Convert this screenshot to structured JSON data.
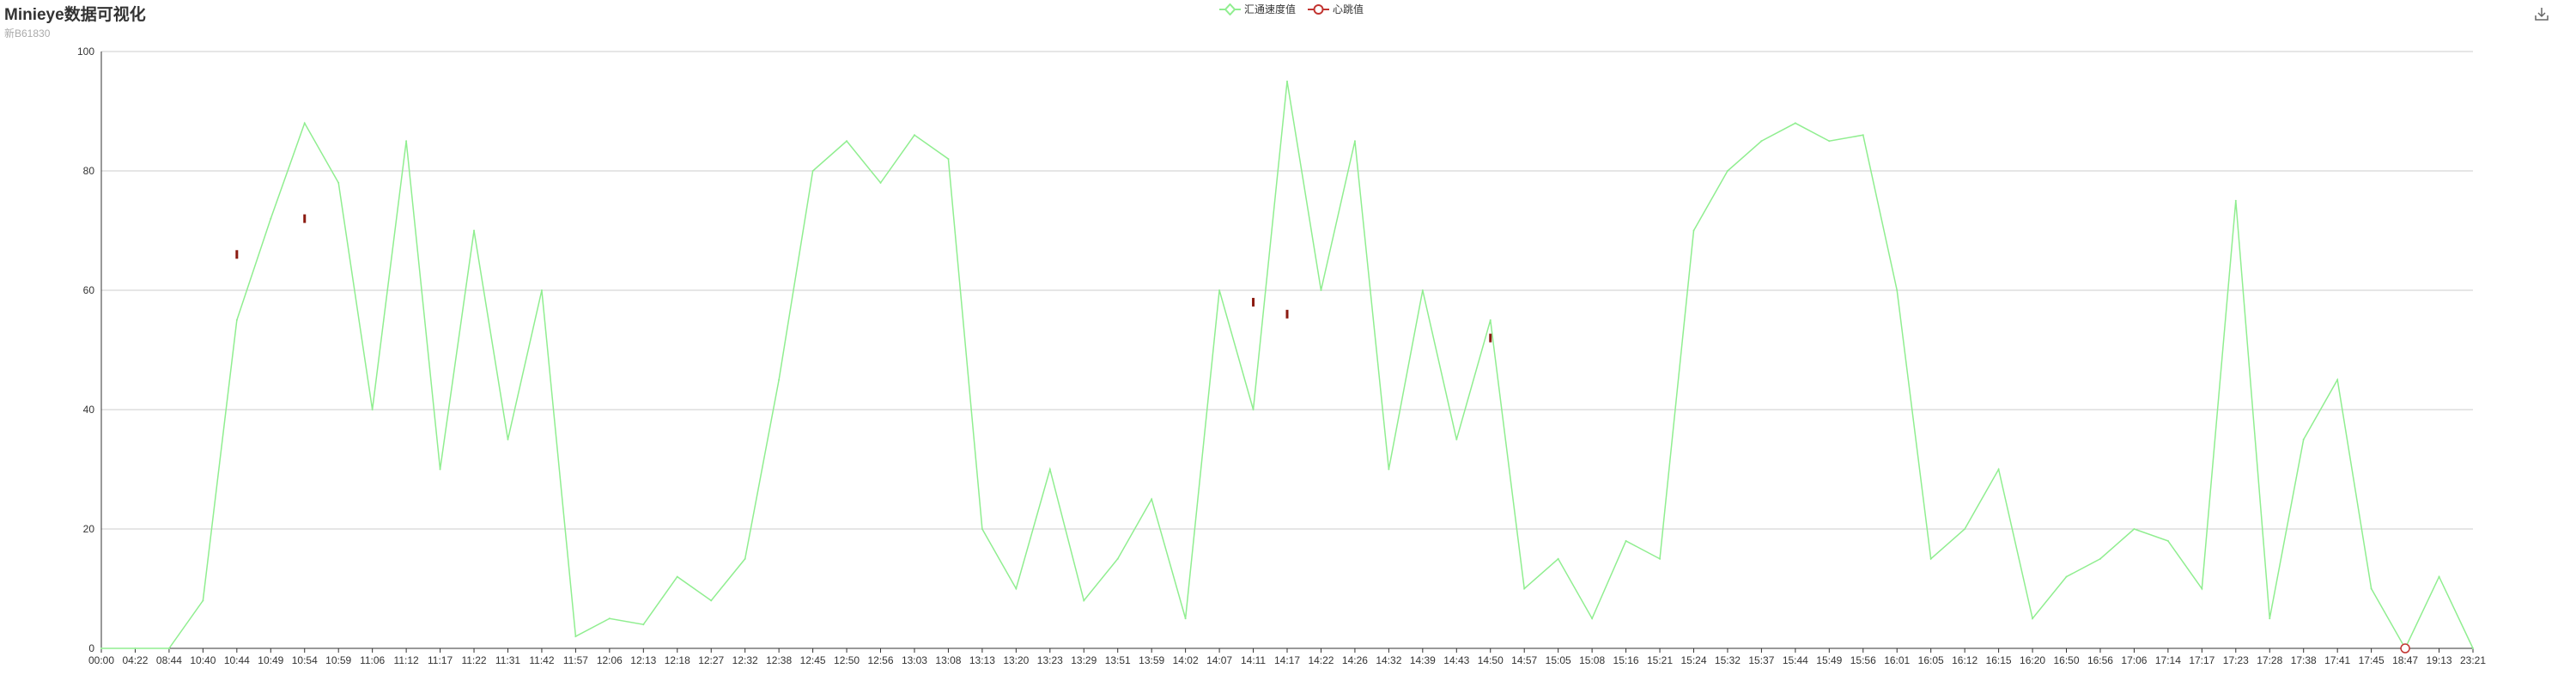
{
  "header": {
    "title": "Minieye数据可视化",
    "subtitle": "新B61830"
  },
  "legend": [
    {
      "name": "汇通速度值",
      "color": "#90ee90",
      "symbol": "emptyDiamond"
    },
    {
      "name": "心跳值",
      "color": "#c23531",
      "symbol": "emptyCircle"
    }
  ],
  "toolbox": {
    "icon": "download-icon"
  },
  "chart_data": {
    "type": "line",
    "title": "Minieye数据可视化",
    "subtitle": "新B61830",
    "ylim": [
      0,
      100
    ],
    "yticks": [
      0,
      20,
      40,
      60,
      80,
      100
    ],
    "grid": true,
    "legend_position": "top-center",
    "categories": [
      "00:00",
      "04:22",
      "08:44",
      "10:40",
      "10:44",
      "10:49",
      "10:54",
      "10:59",
      "11:06",
      "11:12",
      "11:17",
      "11:22",
      "11:31",
      "11:42",
      "11:57",
      "12:06",
      "12:13",
      "12:18",
      "12:27",
      "12:32",
      "12:38",
      "12:45",
      "12:50",
      "12:56",
      "13:03",
      "13:08",
      "13:13",
      "13:20",
      "13:23",
      "13:29",
      "13:51",
      "13:59",
      "14:02",
      "14:07",
      "14:11",
      "14:17",
      "14:22",
      "14:26",
      "14:32",
      "14:39",
      "14:43",
      "14:50",
      "14:57",
      "15:05",
      "15:08",
      "15:16",
      "15:21",
      "15:24",
      "15:32",
      "15:37",
      "15:44",
      "15:49",
      "15:56",
      "16:01",
      "16:05",
      "16:12",
      "16:15",
      "16:20",
      "16:50",
      "16:56",
      "17:06",
      "17:14",
      "17:17",
      "17:23",
      "17:28",
      "17:38",
      "17:41",
      "17:45",
      "18:47",
      "19:13",
      "23:21"
    ],
    "series": [
      {
        "name": "汇通速度值",
        "color": "#90ee90",
        "values": [
          0,
          0,
          0,
          8,
          55,
          72,
          88,
          78,
          40,
          85,
          30,
          70,
          35,
          60,
          2,
          5,
          4,
          12,
          8,
          15,
          45,
          80,
          85,
          78,
          86,
          82,
          20,
          10,
          30,
          8,
          15,
          25,
          5,
          60,
          40,
          95,
          60,
          85,
          30,
          60,
          35,
          55,
          10,
          15,
          5,
          18,
          15,
          70,
          80,
          85,
          88,
          85,
          86,
          60,
          15,
          20,
          30,
          5,
          12,
          15,
          20,
          18,
          10,
          75,
          5,
          35,
          45,
          10,
          0,
          12,
          0
        ]
      },
      {
        "name": "心跳值",
        "color": "#c23531",
        "points": [
          {
            "x": "10:44",
            "y": 66
          },
          {
            "x": "10:54",
            "y": 72
          },
          {
            "x": "14:11",
            "y": 58
          },
          {
            "x": "14:17",
            "y": 56
          },
          {
            "x": "14:50",
            "y": 52
          },
          {
            "x": "18:47",
            "y": 0
          }
        ]
      }
    ]
  }
}
